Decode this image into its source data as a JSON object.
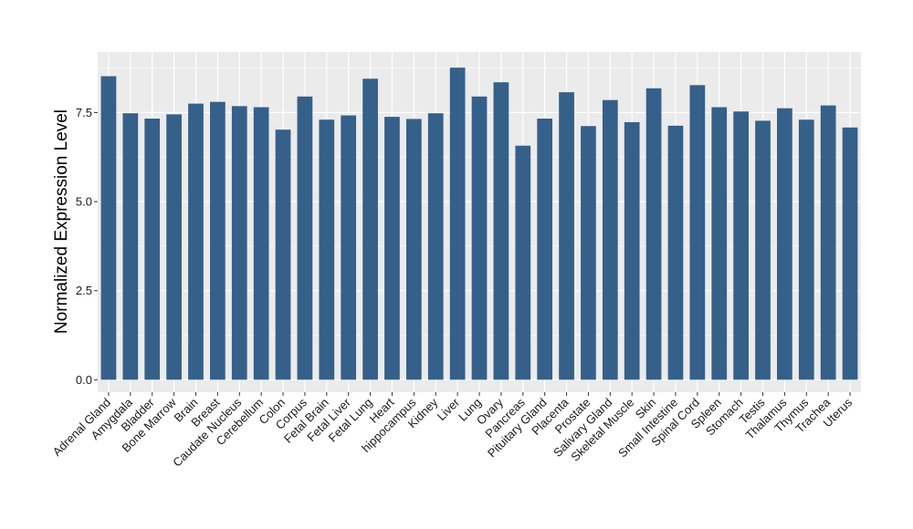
{
  "chart_data": {
    "type": "bar",
    "title": "",
    "xlabel": "",
    "ylabel": "Normalized Expression Level",
    "ylim": [
      -0.35,
      9.2
    ],
    "yticks": [
      0.0,
      2.5,
      5.0,
      7.5
    ],
    "ytick_labels": [
      "0.0",
      "2.5",
      "5.0",
      "7.5"
    ],
    "grid": true,
    "legend": "none",
    "colors": {
      "bar": "#35608a",
      "panel": "#ebebeb",
      "grid": "#ffffff"
    },
    "categories": [
      "Adrenal Gland",
      "Amygdala",
      "Bladder",
      "Bone Marrow",
      "Brain",
      "Breast",
      "Caudate Nucleus",
      "Cerebellum",
      "Colon",
      "Corpus",
      "Fetal Brain",
      "Fetal Liver",
      "Fetal Lung",
      "Heart",
      "hippocampus",
      "Kidney",
      "Liver",
      "Lung",
      "Ovary",
      "Pancreas",
      "Pituitary Gland",
      "Placenta",
      "Prostate",
      "Salivary Gland",
      "Skeletal Muscle",
      "Skin",
      "Small Intestine",
      "Spinal Cord",
      "Spleen",
      "Stomach",
      "Testis",
      "Thalamus",
      "Thymus",
      "Trachea",
      "Uterus"
    ],
    "values": [
      8.52,
      7.48,
      7.33,
      7.45,
      7.75,
      7.8,
      7.68,
      7.65,
      7.02,
      7.95,
      7.3,
      7.42,
      8.45,
      7.38,
      7.32,
      7.48,
      8.76,
      7.95,
      8.35,
      6.57,
      7.33,
      8.07,
      7.12,
      7.85,
      7.23,
      8.18,
      7.13,
      8.27,
      7.65,
      7.53,
      7.27,
      7.62,
      7.3,
      7.7,
      7.08
    ]
  }
}
